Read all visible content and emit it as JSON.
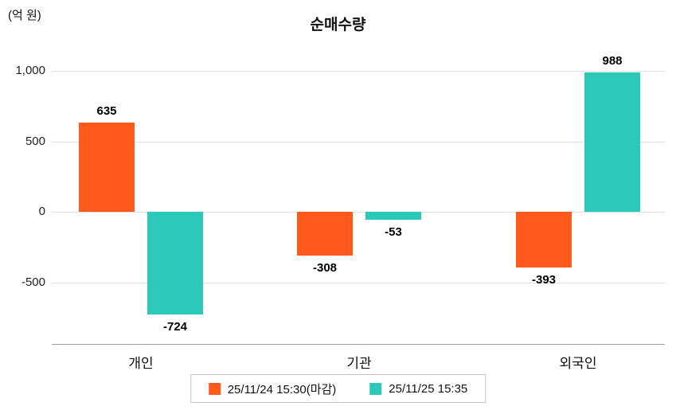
{
  "title": "순매수량",
  "y_axis_unit": "(억 원)",
  "colors": {
    "series1": "#ff5a1b",
    "series2": "#2cc8ba",
    "gridline": "#e0e0e0",
    "axis": "#9a9a9a"
  },
  "chart_data": {
    "type": "bar",
    "title": "순매수량",
    "ylabel": "(억 원)",
    "categories": [
      "개인",
      "기관",
      "외국인"
    ],
    "series": [
      {
        "name": "25/11/24 15:30(마감)",
        "color": "#ff5a1b",
        "values": [
          635,
          -308,
          -393
        ]
      },
      {
        "name": "25/11/25 15:35",
        "color": "#2cc8ba",
        "values": [
          -724,
          -53,
          988
        ]
      }
    ],
    "y_ticks": [
      1000,
      500,
      0,
      -500
    ],
    "y_tick_labels": [
      "1,000",
      "500",
      "0",
      "-500"
    ],
    "ylim": [
      -850,
      1150
    ],
    "grid": true,
    "legend_position": "bottom"
  }
}
